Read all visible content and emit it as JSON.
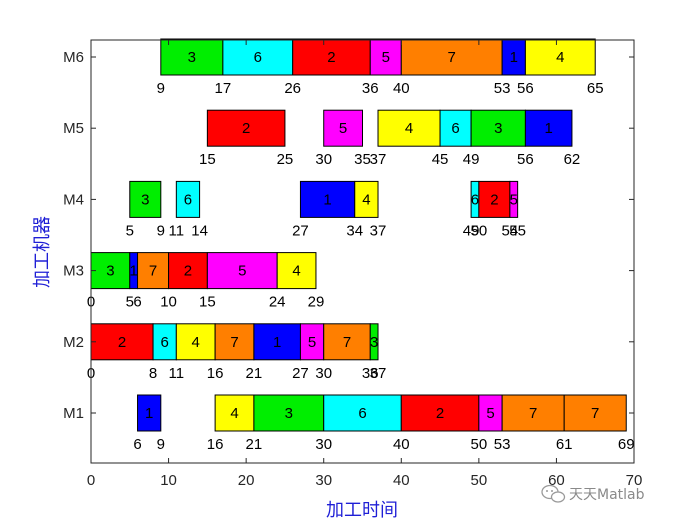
{
  "chart_data": {
    "type": "gantt",
    "xlabel": "加工时间",
    "ylabel": "加工机器",
    "xlim": [
      0,
      70
    ],
    "xticks": [
      0,
      10,
      20,
      30,
      40,
      50,
      60,
      70
    ],
    "machines": [
      "M1",
      "M2",
      "M3",
      "M4",
      "M5",
      "M6"
    ],
    "job_colors": {
      "1": "#0000ff",
      "2": "#ff0000",
      "3": "#00ee00",
      "4": "#ffff00",
      "5": "#ff00ff",
      "6": "#00ffff",
      "7": "#ff7f00"
    },
    "tasks": {
      "M1": [
        {
          "job": 1,
          "start": 6,
          "end": 9
        },
        {
          "job": 4,
          "start": 16,
          "end": 21
        },
        {
          "job": 3,
          "start": 21,
          "end": 30
        },
        {
          "job": 6,
          "start": 30,
          "end": 40
        },
        {
          "job": 2,
          "start": 40,
          "end": 50
        },
        {
          "job": 5,
          "start": 50,
          "end": 53
        },
        {
          "job": 7,
          "start": 53,
          "end": 61
        },
        {
          "job": 7,
          "start": 61,
          "end": 69
        }
      ],
      "M2": [
        {
          "job": 2,
          "start": 0,
          "end": 8
        },
        {
          "job": 6,
          "start": 8,
          "end": 11
        },
        {
          "job": 4,
          "start": 11,
          "end": 16
        },
        {
          "job": 7,
          "start": 16,
          "end": 21
        },
        {
          "job": 1,
          "start": 21,
          "end": 27
        },
        {
          "job": 5,
          "start": 27,
          "end": 30
        },
        {
          "job": 7,
          "start": 30,
          "end": 36
        },
        {
          "job": 3,
          "start": 36,
          "end": 37
        }
      ],
      "M3": [
        {
          "job": 3,
          "start": 0,
          "end": 5
        },
        {
          "job": 1,
          "start": 5,
          "end": 6
        },
        {
          "job": 7,
          "start": 6,
          "end": 10
        },
        {
          "job": 2,
          "start": 10,
          "end": 15
        },
        {
          "job": 5,
          "start": 15,
          "end": 24
        },
        {
          "job": 4,
          "start": 24,
          "end": 29
        }
      ],
      "M4": [
        {
          "job": 3,
          "start": 5,
          "end": 9
        },
        {
          "job": 6,
          "start": 11,
          "end": 14
        },
        {
          "job": 1,
          "start": 27,
          "end": 34
        },
        {
          "job": 4,
          "start": 34,
          "end": 37
        },
        {
          "job": 6,
          "start": 49,
          "end": 50
        },
        {
          "job": 2,
          "start": 50,
          "end": 54
        },
        {
          "job": 5,
          "start": 54,
          "end": 55
        }
      ],
      "M5": [
        {
          "job": 2,
          "start": 15,
          "end": 25
        },
        {
          "job": 5,
          "start": 30,
          "end": 35
        },
        {
          "job": 4,
          "start": 37,
          "end": 45
        },
        {
          "job": 6,
          "start": 45,
          "end": 49
        },
        {
          "job": 3,
          "start": 49,
          "end": 56
        },
        {
          "job": 1,
          "start": 56,
          "end": 62
        }
      ],
      "M6": [
        {
          "job": 3,
          "start": 9,
          "end": 17
        },
        {
          "job": 6,
          "start": 17,
          "end": 26
        },
        {
          "job": 2,
          "start": 26,
          "end": 36
        },
        {
          "job": 5,
          "start": 36,
          "end": 40
        },
        {
          "job": 7,
          "start": 40,
          "end": 53
        },
        {
          "job": 1,
          "start": 53,
          "end": 56
        },
        {
          "job": 4,
          "start": 56,
          "end": 65
        }
      ]
    }
  },
  "watermark": {
    "text": "天天Matlab",
    "icon": "wechat-icon"
  }
}
